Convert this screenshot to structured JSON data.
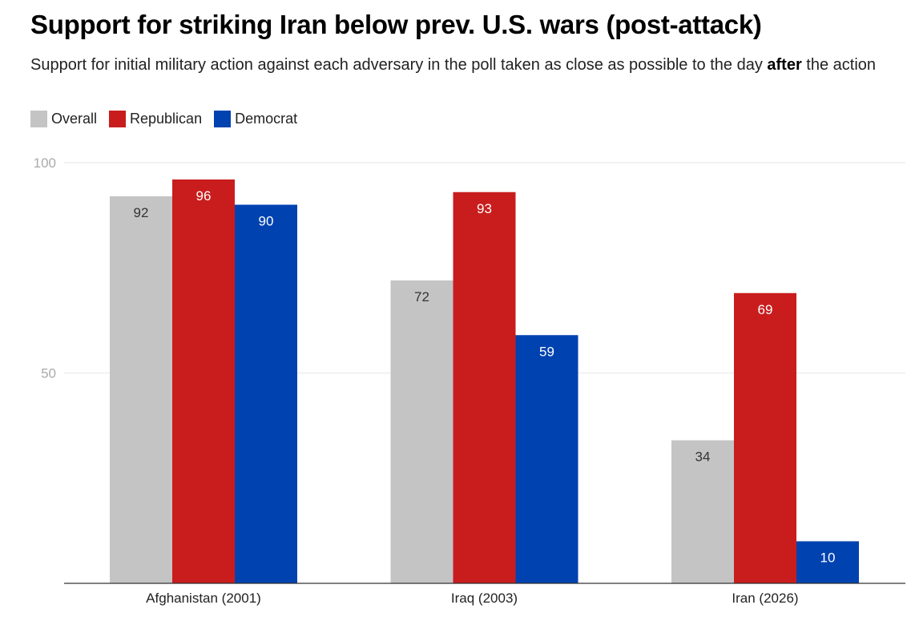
{
  "header": {
    "title": "Support for striking Iran below prev. U.S. wars (post-attack)",
    "subtitle_before": "Support for initial military action against each adversary in the poll taken as close as possible to the day ",
    "subtitle_bold": "after",
    "subtitle_after": " the action"
  },
  "chart_data": {
    "type": "bar",
    "categories": [
      "Afghanistan (2001)",
      "Iraq (2003)",
      "Iran (2026)"
    ],
    "series": [
      {
        "name": "Overall",
        "values": [
          92,
          72,
          34
        ],
        "color": "#c4c4c4",
        "label_color": "#333333"
      },
      {
        "name": "Republican",
        "values": [
          96,
          93,
          69
        ],
        "color": "#c91d1d",
        "label_color": "#ffffff"
      },
      {
        "name": "Democrat",
        "values": [
          90,
          59,
          10
        ],
        "color": "#0042b0",
        "label_color": "#ffffff"
      }
    ],
    "yticks": [
      50,
      100
    ],
    "ylim": [
      0,
      100
    ],
    "grid": true,
    "legend_position": "top-left",
    "axis_color": "#333333",
    "grid_color": "#e6e6e6",
    "tick_label_color": "#aaaaaa"
  }
}
